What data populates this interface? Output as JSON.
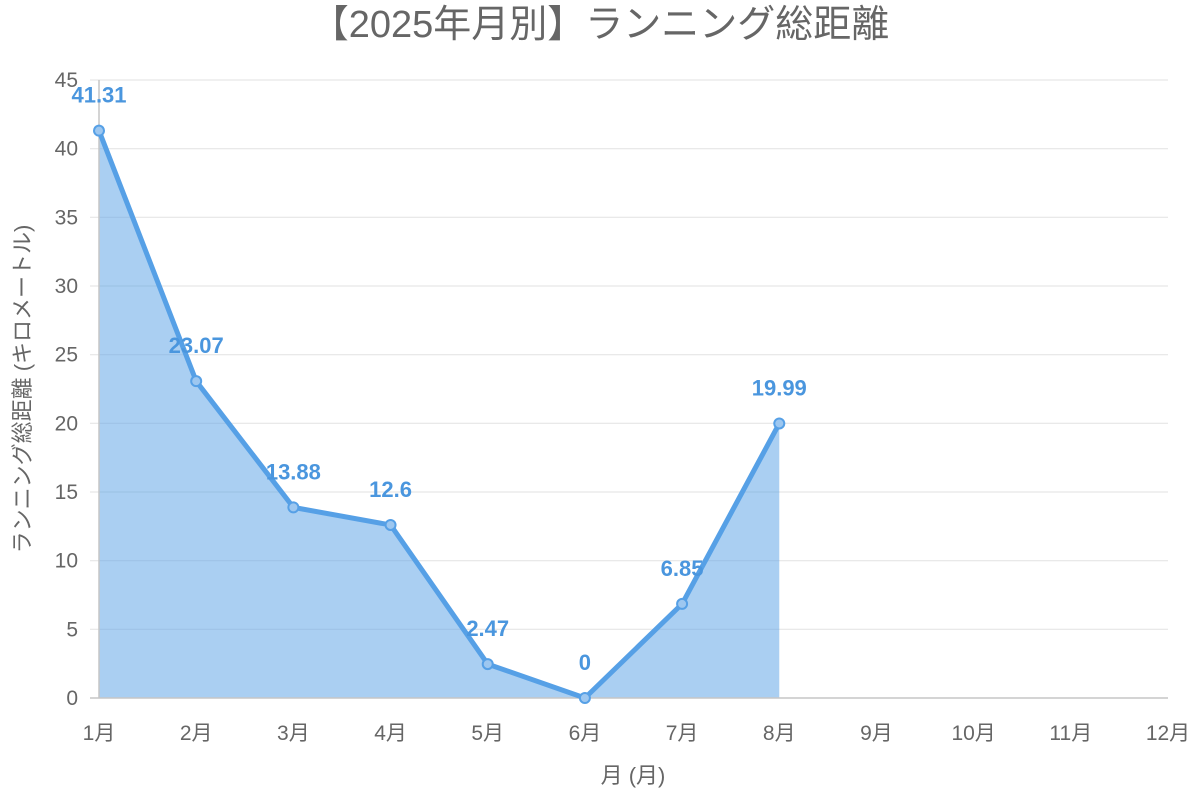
{
  "chart_data": {
    "type": "area",
    "title": "【2025年月別】ランニング総距離",
    "xlabel": "月 (月)",
    "ylabel": "ランニング総距離 (キロメートル)",
    "categories": [
      "1月",
      "2月",
      "3月",
      "4月",
      "5月",
      "6月",
      "7月",
      "8月",
      "9月",
      "10月",
      "11月",
      "12月"
    ],
    "values": [
      41.31,
      23.07,
      13.88,
      12.6,
      2.47,
      0,
      6.85,
      19.99,
      null,
      null,
      null,
      null
    ],
    "ylim": [
      0,
      45
    ],
    "yticks": [
      0,
      5,
      10,
      15,
      20,
      25,
      30,
      35,
      40,
      45
    ],
    "data_labels": true,
    "grid": "horizontal",
    "legend": "none",
    "colors": {
      "line": "#56a0e6",
      "point_fill": "#9dc7f0",
      "data_label": "#4a96de",
      "grid": "#e6e6e6",
      "axis": "#c6c6c6"
    }
  }
}
